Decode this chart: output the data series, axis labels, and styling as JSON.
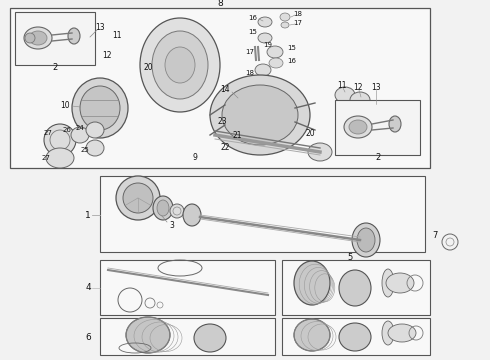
{
  "bg_color": "#f0f0f0",
  "white": "#ffffff",
  "line_color": "#555555",
  "text_color": "#111111",
  "fig_width": 4.9,
  "fig_height": 3.6,
  "dpi": 100
}
